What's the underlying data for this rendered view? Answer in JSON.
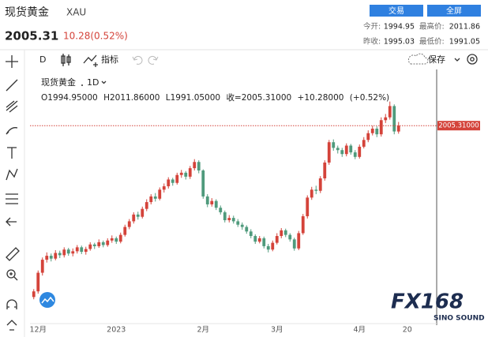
{
  "header": {
    "title": "现货黄金",
    "symbol": "XAU",
    "price": "2005.31",
    "change": "10.28(0.52%)",
    "buttons": [
      "交易",
      "全屏"
    ],
    "stats": [
      {
        "label": "今开:",
        "value": "1994.95"
      },
      {
        "label": "最高价:",
        "value": "2011.86"
      },
      {
        "label": "昨收:",
        "value": "1995.03"
      },
      {
        "label": "最低价:",
        "value": "1991.05"
      }
    ]
  },
  "toolbar": {
    "interval": "D",
    "indicators": "指标",
    "save": "保存"
  },
  "chart_data": {
    "type": "candlestick",
    "title": "现货黄金",
    "interval": "1D",
    "legend": {
      "open": "O1994.95000",
      "high": "H2011.86000",
      "low": "L1991.05000",
      "close": "收=2005.31000",
      "change": "+10.28000",
      "change_pct": "(+0.52%)"
    },
    "categories": [
      null,
      "12月",
      null,
      null,
      null,
      null,
      null,
      null,
      null,
      null,
      null,
      null,
      null,
      null,
      null,
      null,
      null,
      null,
      null,
      "2023",
      null,
      null,
      null,
      null,
      null,
      null,
      null,
      null,
      null,
      null,
      null,
      null,
      null,
      null,
      null,
      null,
      null,
      null,
      null,
      "2月",
      null,
      null,
      null,
      null,
      null,
      null,
      null,
      null,
      null,
      null,
      null,
      null,
      null,
      null,
      null,
      null,
      "3月",
      null,
      null,
      null,
      null,
      null,
      null,
      null,
      null,
      null,
      null,
      null,
      null,
      null,
      null,
      null,
      null,
      null,
      null,
      "4月",
      null,
      null,
      null,
      null,
      null,
      null,
      null,
      null,
      null,
      null,
      "20"
    ],
    "open": [
      1702,
      1712,
      1745,
      1768,
      1775,
      1770,
      1780,
      1776,
      1786,
      1779,
      1783,
      1790,
      1782,
      1787,
      1795,
      1792,
      1799,
      1794,
      1802,
      1806,
      1800,
      1812,
      1826,
      1836,
      1848,
      1844,
      1858,
      1870,
      1880,
      1876,
      1892,
      1898,
      1910,
      1904,
      1918,
      1922,
      1915,
      1930,
      1941,
      1926,
      1880,
      1866,
      1872,
      1860,
      1852,
      1838,
      1842,
      1836,
      1830,
      1826,
      1818,
      1810,
      1800,
      1806,
      1792,
      1786,
      1798,
      1810,
      1820,
      1812,
      1804,
      1788,
      1815,
      1845,
      1878,
      1892,
      1890,
      1912,
      1940,
      1976,
      1966,
      1962,
      1955,
      1970,
      1958,
      1950,
      1968,
      1980,
      1992,
      2000,
      1990,
      2015,
      2020,
      2040,
      1994.95,
      null,
      null
    ],
    "high": [
      1716,
      1749,
      1772,
      1781,
      1779,
      1785,
      1784,
      1790,
      1789,
      1788,
      1794,
      1793,
      1791,
      1799,
      1798,
      1804,
      1802,
      1806,
      1811,
      1809,
      1816,
      1830,
      1840,
      1852,
      1853,
      1862,
      1875,
      1884,
      1886,
      1896,
      1903,
      1914,
      1913,
      1922,
      1927,
      1925,
      1934,
      1946,
      1944,
      1928,
      1884,
      1877,
      1875,
      1864,
      1855,
      1847,
      1846,
      1840,
      1834,
      1829,
      1822,
      1813,
      1810,
      1809,
      1796,
      1802,
      1815,
      1824,
      1823,
      1815,
      1807,
      1819,
      1849,
      1882,
      1897,
      1899,
      1916,
      1944,
      1980,
      1981,
      1970,
      1966,
      1974,
      1973,
      1962,
      1972,
      1985,
      1997,
      2005,
      2004,
      2020,
      2026,
      2048,
      2043,
      2011.86,
      null,
      null
    ],
    "low": [
      1698,
      1708,
      1740,
      1763,
      1765,
      1767,
      1771,
      1772,
      1775,
      1774,
      1779,
      1778,
      1777,
      1784,
      1787,
      1789,
      1790,
      1791,
      1798,
      1796,
      1797,
      1809,
      1822,
      1832,
      1839,
      1841,
      1854,
      1866,
      1871,
      1873,
      1887,
      1894,
      1899,
      1901,
      1913,
      1910,
      1911,
      1926,
      1921,
      1876,
      1861,
      1862,
      1856,
      1848,
      1834,
      1834,
      1832,
      1826,
      1821,
      1814,
      1806,
      1796,
      1797,
      1788,
      1781,
      1783,
      1795,
      1806,
      1808,
      1800,
      1784,
      1785,
      1812,
      1841,
      1874,
      1884,
      1886,
      1908,
      1936,
      1961,
      1956,
      1950,
      1951,
      1954,
      1946,
      1947,
      1965,
      1976,
      1988,
      1985,
      1986,
      2010,
      2016,
      1990,
      1991.05,
      null,
      null
    ],
    "close": [
      1712,
      1745,
      1768,
      1775,
      1770,
      1780,
      1776,
      1786,
      1779,
      1783,
      1790,
      1782,
      1787,
      1795,
      1792,
      1799,
      1794,
      1802,
      1806,
      1800,
      1812,
      1826,
      1836,
      1848,
      1844,
      1858,
      1870,
      1880,
      1876,
      1892,
      1898,
      1910,
      1904,
      1918,
      1922,
      1915,
      1930,
      1941,
      1926,
      1880,
      1866,
      1872,
      1860,
      1852,
      1838,
      1842,
      1836,
      1830,
      1826,
      1818,
      1810,
      1800,
      1806,
      1792,
      1786,
      1798,
      1810,
      1820,
      1812,
      1804,
      1788,
      1815,
      1845,
      1878,
      1892,
      1890,
      1912,
      1940,
      1976,
      1966,
      1962,
      1955,
      1970,
      1958,
      1950,
      1968,
      1980,
      1992,
      2000,
      1990,
      2015,
      2020,
      2040,
      1995.03,
      2005.31,
      null,
      null
    ],
    "up_color": "#d4433a",
    "down_color": "#4f9a7c",
    "ylim": [
      1655,
      2095
    ],
    "last_price": {
      "value": 2005.31,
      "label": "2005.31000"
    }
  },
  "watermark": {
    "brand": "FX168",
    "sub": "SINO SOUND"
  }
}
